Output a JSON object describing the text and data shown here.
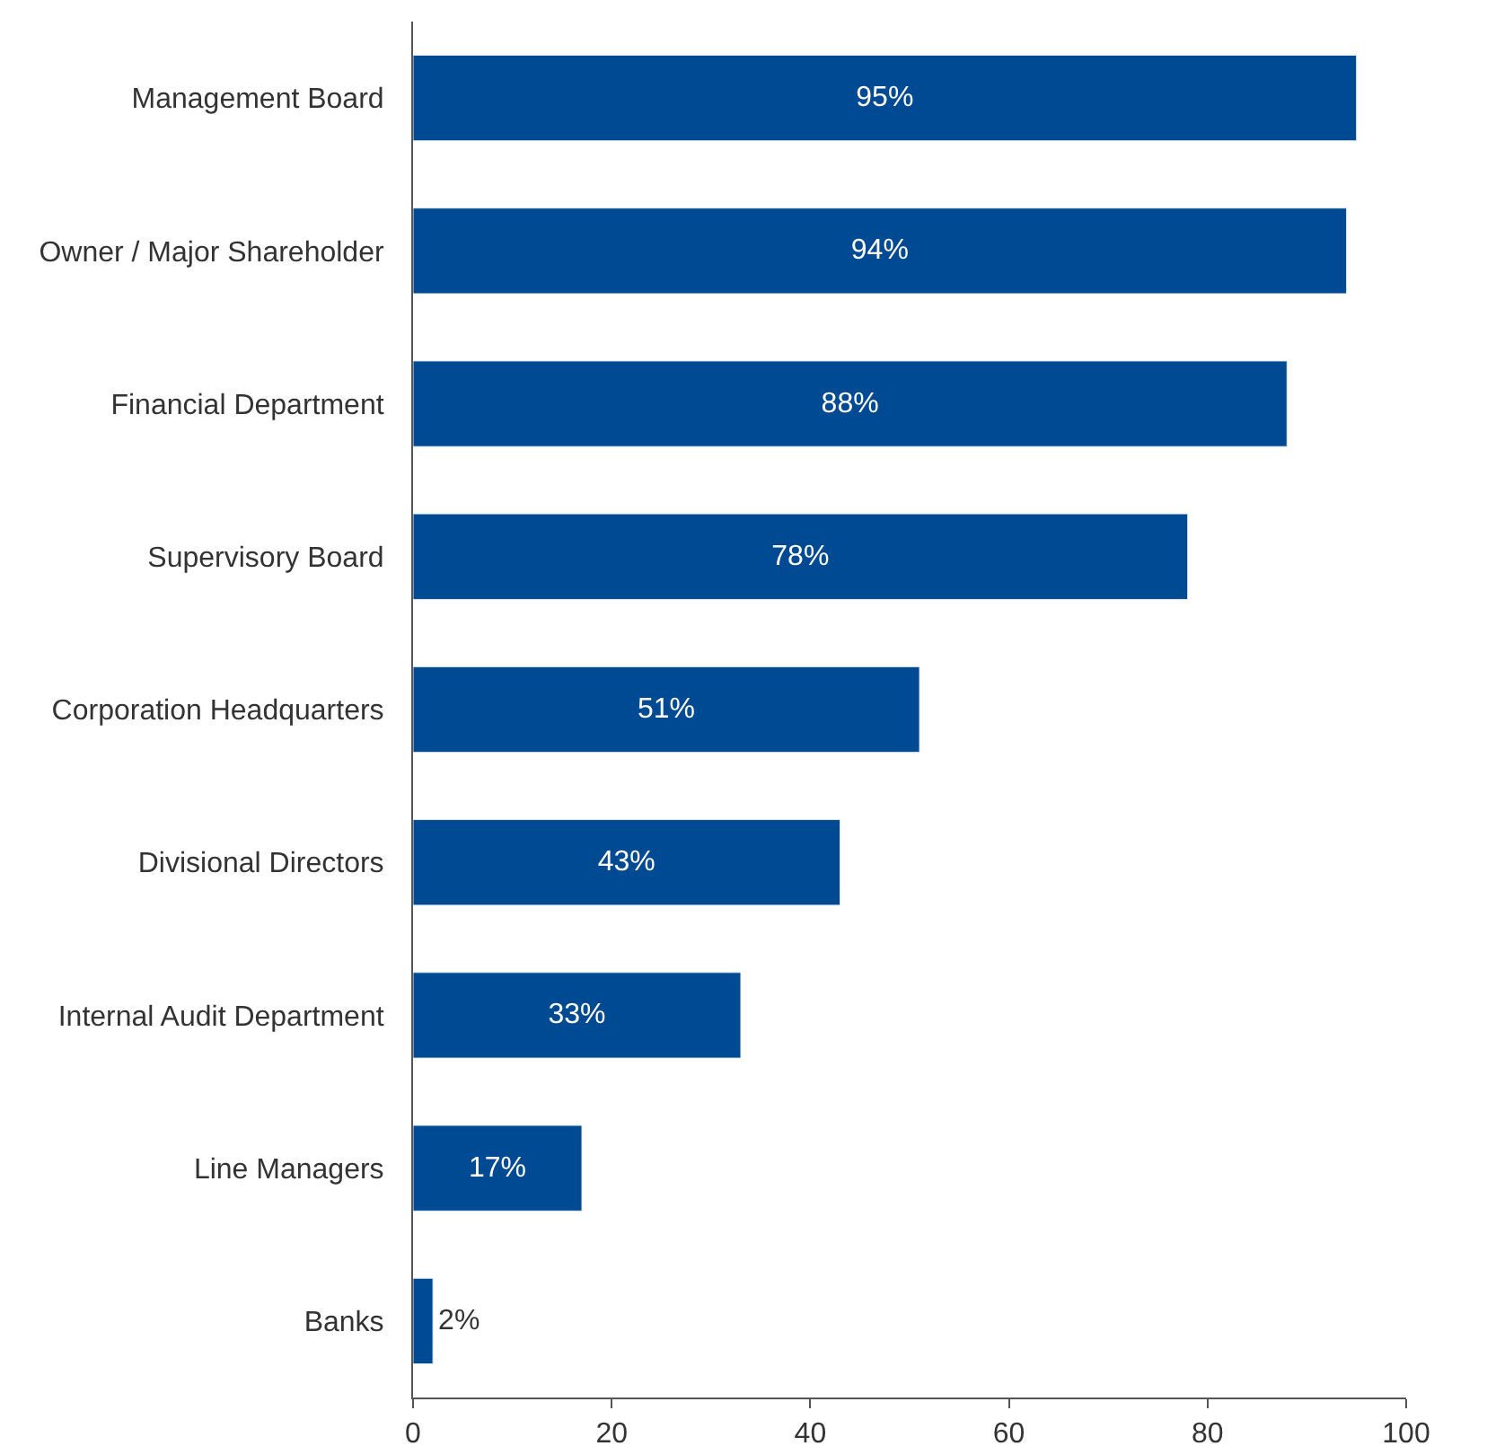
{
  "chart_data": {
    "type": "bar",
    "orientation": "horizontal",
    "categories": [
      "Management Board",
      "Owner / Major Shareholder",
      "Financial Department",
      "Supervisory Board",
      "Corporation Headquarters",
      "Divisional Directors",
      "Internal Audit Department",
      "Line Managers",
      "Banks"
    ],
    "values": [
      95,
      94,
      88,
      78,
      51,
      43,
      33,
      17,
      2
    ],
    "value_labels": [
      "95%",
      "94%",
      "88%",
      "78%",
      "51%",
      "43%",
      "33%",
      "17%",
      "2%"
    ],
    "color": "#004a93",
    "xlim": [
      0,
      100
    ],
    "xticks": [
      0,
      20,
      40,
      60,
      80,
      100
    ],
    "legend": false
  }
}
